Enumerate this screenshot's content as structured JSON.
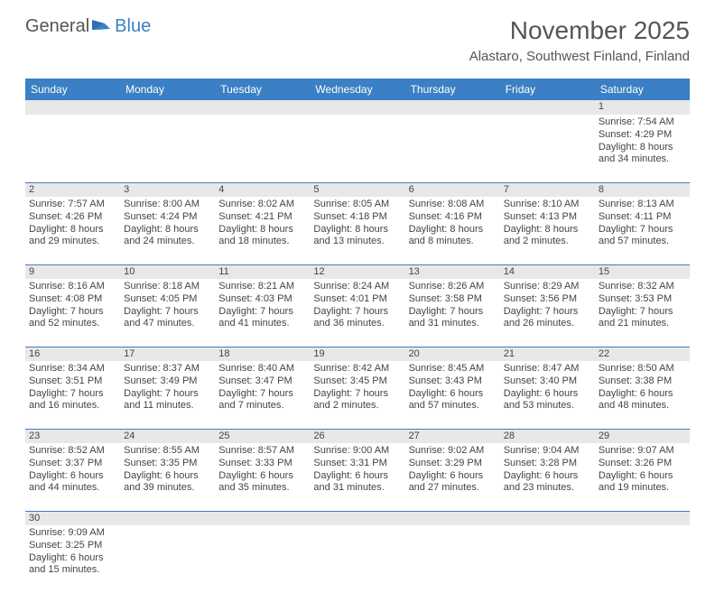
{
  "logo": {
    "general": "General",
    "blue": "Blue"
  },
  "title": "November 2025",
  "subtitle": "Alastaro, Southwest Finland, Finland",
  "colors": {
    "header_bg": "#3b7fc4",
    "header_text": "#ffffff",
    "daynum_bg": "#e8e8e8",
    "border": "#3b7fc4",
    "text": "#444444",
    "title_text": "#555555"
  },
  "dayHeaders": [
    "Sunday",
    "Monday",
    "Tuesday",
    "Wednesday",
    "Thursday",
    "Friday",
    "Saturday"
  ],
  "weeks": [
    [
      null,
      null,
      null,
      null,
      null,
      null,
      {
        "n": "1",
        "sr": "Sunrise: 7:54 AM",
        "ss": "Sunset: 4:29 PM",
        "dl": "Daylight: 8 hours and 34 minutes."
      }
    ],
    [
      {
        "n": "2",
        "sr": "Sunrise: 7:57 AM",
        "ss": "Sunset: 4:26 PM",
        "dl": "Daylight: 8 hours and 29 minutes."
      },
      {
        "n": "3",
        "sr": "Sunrise: 8:00 AM",
        "ss": "Sunset: 4:24 PM",
        "dl": "Daylight: 8 hours and 24 minutes."
      },
      {
        "n": "4",
        "sr": "Sunrise: 8:02 AM",
        "ss": "Sunset: 4:21 PM",
        "dl": "Daylight: 8 hours and 18 minutes."
      },
      {
        "n": "5",
        "sr": "Sunrise: 8:05 AM",
        "ss": "Sunset: 4:18 PM",
        "dl": "Daylight: 8 hours and 13 minutes."
      },
      {
        "n": "6",
        "sr": "Sunrise: 8:08 AM",
        "ss": "Sunset: 4:16 PM",
        "dl": "Daylight: 8 hours and 8 minutes."
      },
      {
        "n": "7",
        "sr": "Sunrise: 8:10 AM",
        "ss": "Sunset: 4:13 PM",
        "dl": "Daylight: 8 hours and 2 minutes."
      },
      {
        "n": "8",
        "sr": "Sunrise: 8:13 AM",
        "ss": "Sunset: 4:11 PM",
        "dl": "Daylight: 7 hours and 57 minutes."
      }
    ],
    [
      {
        "n": "9",
        "sr": "Sunrise: 8:16 AM",
        "ss": "Sunset: 4:08 PM",
        "dl": "Daylight: 7 hours and 52 minutes."
      },
      {
        "n": "10",
        "sr": "Sunrise: 8:18 AM",
        "ss": "Sunset: 4:05 PM",
        "dl": "Daylight: 7 hours and 47 minutes."
      },
      {
        "n": "11",
        "sr": "Sunrise: 8:21 AM",
        "ss": "Sunset: 4:03 PM",
        "dl": "Daylight: 7 hours and 41 minutes."
      },
      {
        "n": "12",
        "sr": "Sunrise: 8:24 AM",
        "ss": "Sunset: 4:01 PM",
        "dl": "Daylight: 7 hours and 36 minutes."
      },
      {
        "n": "13",
        "sr": "Sunrise: 8:26 AM",
        "ss": "Sunset: 3:58 PM",
        "dl": "Daylight: 7 hours and 31 minutes."
      },
      {
        "n": "14",
        "sr": "Sunrise: 8:29 AM",
        "ss": "Sunset: 3:56 PM",
        "dl": "Daylight: 7 hours and 26 minutes."
      },
      {
        "n": "15",
        "sr": "Sunrise: 8:32 AM",
        "ss": "Sunset: 3:53 PM",
        "dl": "Daylight: 7 hours and 21 minutes."
      }
    ],
    [
      {
        "n": "16",
        "sr": "Sunrise: 8:34 AM",
        "ss": "Sunset: 3:51 PM",
        "dl": "Daylight: 7 hours and 16 minutes."
      },
      {
        "n": "17",
        "sr": "Sunrise: 8:37 AM",
        "ss": "Sunset: 3:49 PM",
        "dl": "Daylight: 7 hours and 11 minutes."
      },
      {
        "n": "18",
        "sr": "Sunrise: 8:40 AM",
        "ss": "Sunset: 3:47 PM",
        "dl": "Daylight: 7 hours and 7 minutes."
      },
      {
        "n": "19",
        "sr": "Sunrise: 8:42 AM",
        "ss": "Sunset: 3:45 PM",
        "dl": "Daylight: 7 hours and 2 minutes."
      },
      {
        "n": "20",
        "sr": "Sunrise: 8:45 AM",
        "ss": "Sunset: 3:43 PM",
        "dl": "Daylight: 6 hours and 57 minutes."
      },
      {
        "n": "21",
        "sr": "Sunrise: 8:47 AM",
        "ss": "Sunset: 3:40 PM",
        "dl": "Daylight: 6 hours and 53 minutes."
      },
      {
        "n": "22",
        "sr": "Sunrise: 8:50 AM",
        "ss": "Sunset: 3:38 PM",
        "dl": "Daylight: 6 hours and 48 minutes."
      }
    ],
    [
      {
        "n": "23",
        "sr": "Sunrise: 8:52 AM",
        "ss": "Sunset: 3:37 PM",
        "dl": "Daylight: 6 hours and 44 minutes."
      },
      {
        "n": "24",
        "sr": "Sunrise: 8:55 AM",
        "ss": "Sunset: 3:35 PM",
        "dl": "Daylight: 6 hours and 39 minutes."
      },
      {
        "n": "25",
        "sr": "Sunrise: 8:57 AM",
        "ss": "Sunset: 3:33 PM",
        "dl": "Daylight: 6 hours and 35 minutes."
      },
      {
        "n": "26",
        "sr": "Sunrise: 9:00 AM",
        "ss": "Sunset: 3:31 PM",
        "dl": "Daylight: 6 hours and 31 minutes."
      },
      {
        "n": "27",
        "sr": "Sunrise: 9:02 AM",
        "ss": "Sunset: 3:29 PM",
        "dl": "Daylight: 6 hours and 27 minutes."
      },
      {
        "n": "28",
        "sr": "Sunrise: 9:04 AM",
        "ss": "Sunset: 3:28 PM",
        "dl": "Daylight: 6 hours and 23 minutes."
      },
      {
        "n": "29",
        "sr": "Sunrise: 9:07 AM",
        "ss": "Sunset: 3:26 PM",
        "dl": "Daylight: 6 hours and 19 minutes."
      }
    ],
    [
      {
        "n": "30",
        "sr": "Sunrise: 9:09 AM",
        "ss": "Sunset: 3:25 PM",
        "dl": "Daylight: 6 hours and 15 minutes."
      },
      null,
      null,
      null,
      null,
      null,
      null
    ]
  ]
}
